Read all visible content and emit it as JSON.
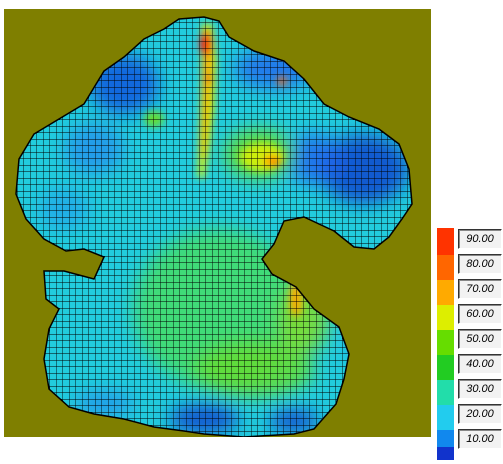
{
  "legend": {
    "items": [
      {
        "label": "90.00",
        "color": "#ff3300"
      },
      {
        "label": "80.00",
        "color": "#ff6600"
      },
      {
        "label": "70.00",
        "color": "#ffaa00"
      },
      {
        "label": "60.00",
        "color": "#ddee00"
      },
      {
        "label": "50.00",
        "color": "#66dd00"
      },
      {
        "label": "40.00",
        "color": "#22cc22"
      },
      {
        "label": "30.00",
        "color": "#22ddaa"
      },
      {
        "label": "20.00",
        "color": "#22ccee"
      },
      {
        "label": "10.00",
        "color": "#1188ee"
      }
    ],
    "lowest_color": "#1133cc"
  },
  "map": {
    "background_color": "#7f7f00",
    "grid_color": "#000000"
  }
}
